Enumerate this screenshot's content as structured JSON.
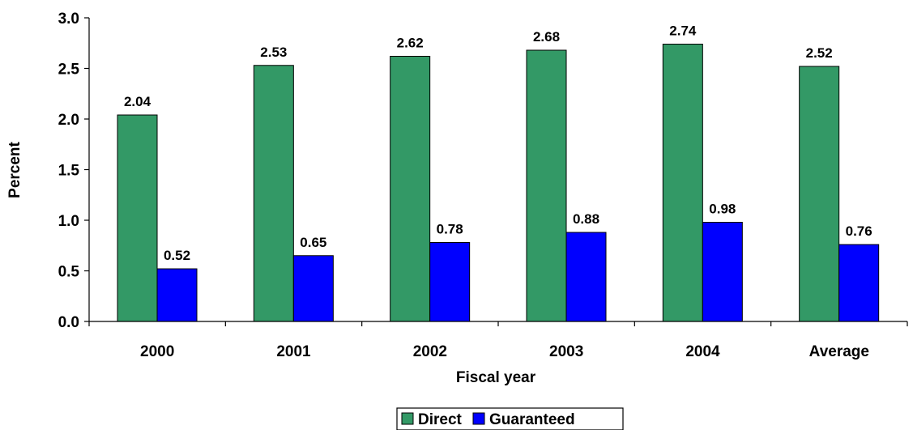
{
  "chart_data": {
    "type": "bar",
    "categories": [
      "2000",
      "2001",
      "2002",
      "2003",
      "2004",
      "Average"
    ],
    "series": [
      {
        "name": "Direct",
        "values": [
          2.04,
          2.53,
          2.62,
          2.68,
          2.74,
          2.52
        ],
        "color": "#339966"
      },
      {
        "name": "Guaranteed",
        "values": [
          0.52,
          0.65,
          0.78,
          0.88,
          0.98,
          0.76
        ],
        "color": "#0000FF"
      }
    ],
    "value_labels": [
      [
        "2.04",
        "2.53",
        "2.62",
        "2.68",
        "2.74",
        "2.52"
      ],
      [
        "0.52",
        "0.65",
        "0.78",
        "0.88",
        "0.98",
        "0.76"
      ]
    ],
    "title": "",
    "xlabel": "Fiscal year",
    "ylabel": "Percent",
    "ylim": [
      0,
      3.0
    ],
    "yticks": [
      0.0,
      0.5,
      1.0,
      1.5,
      2.0,
      2.5,
      3.0
    ],
    "ytick_labels": [
      "0.0",
      "0.5",
      "1.0",
      "1.5",
      "2.0",
      "2.5",
      "3.0"
    ],
    "grid": false,
    "legend_position": "bottom-center"
  }
}
